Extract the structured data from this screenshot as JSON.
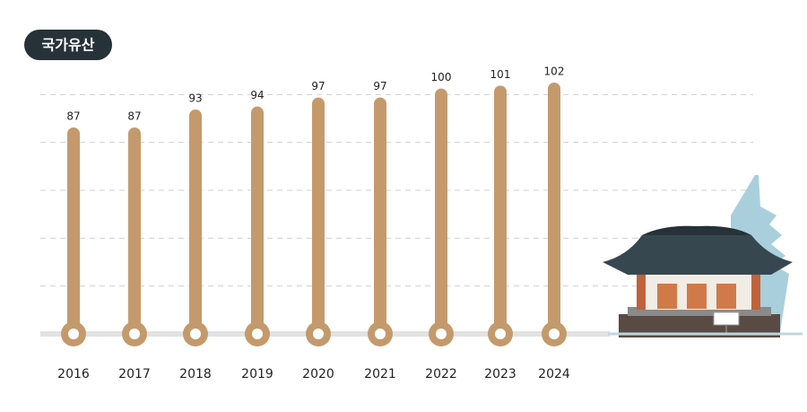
{
  "chart_data": {
    "type": "lollipop",
    "title": "국가유산",
    "categories": [
      "2016",
      "2017",
      "2018",
      "2019",
      "2020",
      "2021",
      "2022",
      "2023",
      "2024"
    ],
    "values": [
      87,
      87,
      93,
      94,
      97,
      97,
      100,
      101,
      102
    ],
    "color": "#c49a6c",
    "ylim": [
      18,
      105
    ],
    "yticks": [
      34,
      50,
      66,
      82,
      98
    ],
    "grid": true
  }
}
